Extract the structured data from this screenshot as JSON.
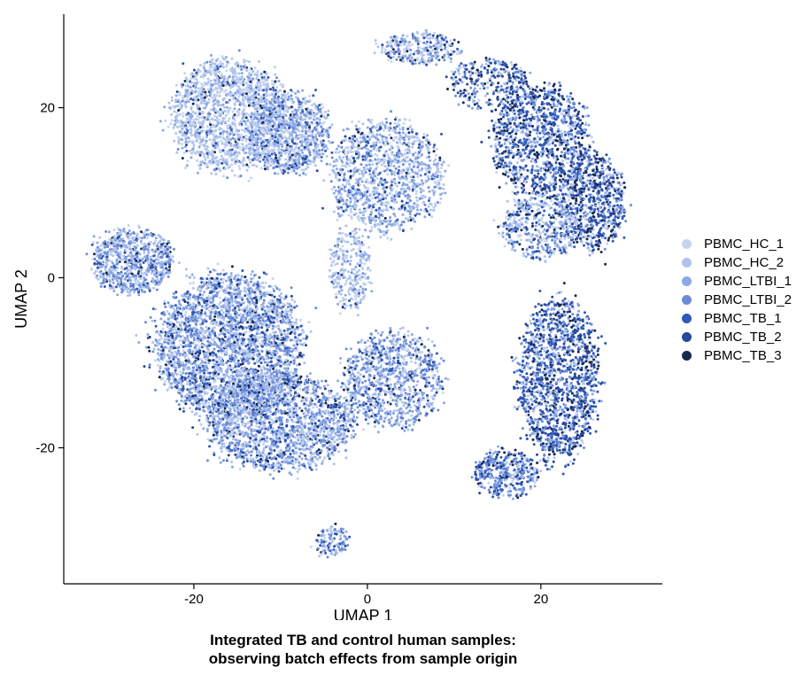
{
  "chart_data": {
    "type": "scatter",
    "xlabel": "UMAP 1",
    "ylabel": "UMAP 2",
    "title": "Integrated TB and control human samples:",
    "subtitle": "observing batch effects from sample origin",
    "xlim": [
      -35,
      34
    ],
    "ylim": [
      -36,
      31
    ],
    "x_ticks": [
      -20,
      0,
      20
    ],
    "y_ticks": [
      -20,
      0,
      20
    ],
    "x_tick_labels": [
      "-20",
      "0",
      "20"
    ],
    "y_tick_labels": [
      "-20",
      "0",
      "20"
    ],
    "grid": false,
    "legend_position": "right",
    "series": [
      {
        "name": "PBMC_HC_1",
        "color": "#c6d4f0"
      },
      {
        "name": "PBMC_HC_2",
        "color": "#afc3ec"
      },
      {
        "name": "PBMC_LTBI_1",
        "color": "#8ba7e4"
      },
      {
        "name": "PBMC_LTBI_2",
        "color": "#6a8cd9"
      },
      {
        "name": "PBMC_TB_1",
        "color": "#2f58b8"
      },
      {
        "name": "PBMC_TB_2",
        "color": "#27479e"
      },
      {
        "name": "PBMC_TB_3",
        "color": "#16284f"
      }
    ],
    "clusters": [
      {
        "cx": -16,
        "cy": 19,
        "rx": 7,
        "ry": 7,
        "n": 1600,
        "mix": [
          5,
          6,
          2,
          1,
          0.6,
          0.4,
          0.3
        ]
      },
      {
        "cx": -9,
        "cy": 17,
        "rx": 5,
        "ry": 5,
        "n": 900,
        "mix": [
          3,
          3,
          3,
          2,
          1,
          0.6,
          0.5
        ]
      },
      {
        "cx": 2,
        "cy": 12,
        "rx": 7,
        "ry": 7,
        "n": 1200,
        "mix": [
          3,
          3,
          3,
          2,
          1,
          0.6,
          0.5
        ]
      },
      {
        "cx": -2,
        "cy": 1,
        "rx": 2.5,
        "ry": 5,
        "n": 300,
        "mix": [
          4,
          5,
          2,
          1,
          0.3,
          0.2,
          0.1
        ]
      },
      {
        "cx": 6,
        "cy": 27,
        "rx": 5,
        "ry": 2,
        "n": 300,
        "mix": [
          4,
          4,
          2,
          2,
          1,
          1,
          1
        ]
      },
      {
        "cx": 14,
        "cy": 23,
        "rx": 5,
        "ry": 3,
        "n": 300,
        "mix": [
          1,
          1,
          2,
          2,
          2,
          2,
          2
        ]
      },
      {
        "cx": 20,
        "cy": 16,
        "rx": 6,
        "ry": 7,
        "n": 1200,
        "mix": [
          1,
          1,
          2,
          2,
          2.5,
          2.5,
          2
        ]
      },
      {
        "cx": 26,
        "cy": 9,
        "rx": 4,
        "ry": 6,
        "n": 700,
        "mix": [
          1,
          1,
          1.5,
          2,
          2.5,
          2.5,
          2
        ]
      },
      {
        "cx": 20,
        "cy": 6,
        "rx": 5,
        "ry": 4,
        "n": 500,
        "mix": [
          3,
          2,
          2,
          1.5,
          1,
          1,
          1
        ]
      },
      {
        "cx": -27,
        "cy": 2,
        "rx": 5,
        "ry": 4,
        "n": 800,
        "mix": [
          2,
          3,
          3,
          3,
          1,
          0.7,
          0.5
        ]
      },
      {
        "cx": -16,
        "cy": -8,
        "rx": 9,
        "ry": 9,
        "n": 3000,
        "mix": [
          2,
          3,
          3,
          3,
          1.5,
          1,
          0.7
        ]
      },
      {
        "cx": -10,
        "cy": -17,
        "rx": 9,
        "ry": 6,
        "n": 1800,
        "mix": [
          2,
          3,
          3,
          3,
          1,
          0.8,
          0.6
        ]
      },
      {
        "cx": -4,
        "cy": -31,
        "rx": 2,
        "ry": 2,
        "n": 120,
        "mix": [
          2,
          3,
          3,
          3,
          1,
          0.8,
          0.6
        ]
      },
      {
        "cx": 3,
        "cy": -12,
        "rx": 6,
        "ry": 6,
        "n": 1000,
        "mix": [
          2,
          3,
          3,
          3,
          1,
          0.8,
          0.6
        ]
      },
      {
        "cx": 22,
        "cy": -12,
        "rx": 5,
        "ry": 10,
        "n": 1500,
        "mix": [
          1,
          1,
          1.5,
          2,
          3,
          3,
          1.5
        ]
      },
      {
        "cx": 16,
        "cy": -23,
        "rx": 4,
        "ry": 3,
        "n": 400,
        "mix": [
          1,
          1,
          2,
          2.5,
          2,
          1.5,
          1
        ]
      }
    ]
  }
}
